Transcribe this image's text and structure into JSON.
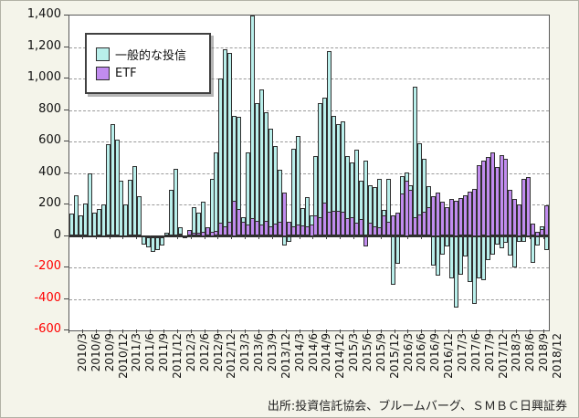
{
  "source_note": "出所:投資信託協会、ブルームバーグ、ＳＭＢＣ日興証券",
  "legend": {
    "fund_label": "一般的な投信",
    "etf_label": "ETF"
  },
  "colors": {
    "background": "#f4f4ea",
    "plot_background": "#ffffff",
    "fund_bar": "#b9efeb",
    "etf_bar": "#c18cef",
    "bar_outline": "#2f2f2f",
    "gridline": "#9a9a9a",
    "negative_tick_label": "#ff0000",
    "positive_tick_label": "#111111"
  },
  "chart_data": {
    "type": "bar",
    "title": "",
    "xlabel": "",
    "ylabel": "",
    "ylim": [
      -600,
      1400
    ],
    "ytick_step": 200,
    "grid": "horizontal-dashed",
    "legend_position": "upper-left-inside",
    "x_tick_label_every_n_months": 3,
    "series_meta": [
      {
        "key": "fund",
        "name": "一般的な投信",
        "color": "#b9efeb"
      },
      {
        "key": "etf",
        "name": "ETF",
        "color": "#c18cef"
      }
    ],
    "columns": [
      "month",
      "fund",
      "etf"
    ],
    "rows": [
      [
        "2010/3",
        140,
        0
      ],
      [
        "2010/4",
        260,
        0
      ],
      [
        "2010/5",
        130,
        0
      ],
      [
        "2010/6",
        205,
        0
      ],
      [
        "2010/7",
        400,
        0
      ],
      [
        "2010/8",
        150,
        0
      ],
      [
        "2010/9",
        170,
        0
      ],
      [
        "2010/10",
        200,
        0
      ],
      [
        "2010/11",
        580,
        5
      ],
      [
        "2010/12",
        710,
        10
      ],
      [
        "2011/1",
        610,
        10
      ],
      [
        "2011/2",
        350,
        5
      ],
      [
        "2011/3",
        200,
        5
      ],
      [
        "2011/4",
        355,
        5
      ],
      [
        "2011/5",
        445,
        5
      ],
      [
        "2011/6",
        255,
        5
      ],
      [
        "2011/7",
        -55,
        0
      ],
      [
        "2011/8",
        -75,
        -5
      ],
      [
        "2011/9",
        -100,
        -10
      ],
      [
        "2011/10",
        -90,
        -10
      ],
      [
        "2011/11",
        -60,
        -5
      ],
      [
        "2011/12",
        20,
        10
      ],
      [
        "2012/1",
        290,
        10
      ],
      [
        "2012/2",
        425,
        10
      ],
      [
        "2012/3",
        55,
        15
      ],
      [
        "2012/4",
        -10,
        5
      ],
      [
        "2012/5",
        20,
        40
      ],
      [
        "2012/6",
        180,
        20
      ],
      [
        "2012/7",
        145,
        20
      ],
      [
        "2012/8",
        215,
        25
      ],
      [
        "2012/9",
        35,
        55
      ],
      [
        "2012/10",
        365,
        25
      ],
      [
        "2012/11",
        530,
        30
      ],
      [
        "2012/12",
        1000,
        85
      ],
      [
        "2013/1",
        1185,
        60
      ],
      [
        "2013/2",
        1165,
        90
      ],
      [
        "2013/3",
        760,
        225
      ],
      [
        "2013/4",
        755,
        170
      ],
      [
        "2013/5",
        120,
        90
      ],
      [
        "2013/6",
        530,
        70
      ],
      [
        "2013/7",
        1400,
        115
      ],
      [
        "2013/8",
        845,
        95
      ],
      [
        "2013/9",
        930,
        70
      ],
      [
        "2013/10",
        785,
        95
      ],
      [
        "2013/11",
        680,
        60
      ],
      [
        "2013/12",
        570,
        80
      ],
      [
        "2014/1",
        420,
        90
      ],
      [
        "2014/2",
        -60,
        275
      ],
      [
        "2014/3",
        -40,
        90
      ],
      [
        "2014/4",
        555,
        60
      ],
      [
        "2014/5",
        635,
        70
      ],
      [
        "2014/6",
        175,
        65
      ],
      [
        "2014/7",
        245,
        60
      ],
      [
        "2014/8",
        130,
        75
      ],
      [
        "2014/9",
        505,
        130
      ],
      [
        "2014/10",
        845,
        120
      ],
      [
        "2014/11",
        880,
        210
      ],
      [
        "2014/12",
        1175,
        155
      ],
      [
        "2015/1",
        765,
        160
      ],
      [
        "2015/2",
        710,
        160
      ],
      [
        "2015/3",
        730,
        155
      ],
      [
        "2015/4",
        510,
        115
      ],
      [
        "2015/5",
        465,
        120
      ],
      [
        "2015/6",
        545,
        85
      ],
      [
        "2015/7",
        350,
        110
      ],
      [
        "2015/8",
        480,
        -65
      ],
      [
        "2015/9",
        320,
        85
      ],
      [
        "2015/10",
        310,
        60
      ],
      [
        "2015/11",
        365,
        55
      ],
      [
        "2015/12",
        165,
        130
      ],
      [
        "2016/1",
        365,
        90
      ],
      [
        "2016/2",
        -310,
        130
      ],
      [
        "2016/3",
        -175,
        145
      ],
      [
        "2016/4",
        380,
        270
      ],
      [
        "2016/5",
        405,
        350
      ],
      [
        "2016/6",
        320,
        290
      ],
      [
        "2016/7",
        945,
        120
      ],
      [
        "2016/8",
        590,
        135
      ],
      [
        "2016/9",
        490,
        155
      ],
      [
        "2016/10",
        315,
        180
      ],
      [
        "2016/11",
        -190,
        250
      ],
      [
        "2016/12",
        -250,
        275
      ],
      [
        "2017/1",
        -120,
        220
      ],
      [
        "2017/2",
        -65,
        180
      ],
      [
        "2017/3",
        -270,
        235
      ],
      [
        "2017/4",
        -455,
        225
      ],
      [
        "2017/5",
        -245,
        240
      ],
      [
        "2017/6",
        -130,
        260
      ],
      [
        "2017/7",
        -290,
        280
      ],
      [
        "2017/8",
        -430,
        300
      ],
      [
        "2017/9",
        -270,
        450
      ],
      [
        "2017/10",
        -280,
        480
      ],
      [
        "2017/11",
        -155,
        500
      ],
      [
        "2017/12",
        -120,
        530
      ],
      [
        "2018/1",
        -55,
        440
      ],
      [
        "2018/2",
        -80,
        515
      ],
      [
        "2018/3",
        -45,
        490
      ],
      [
        "2018/4",
        -125,
        295
      ],
      [
        "2018/5",
        -200,
        235
      ],
      [
        "2018/6",
        -35,
        200
      ],
      [
        "2018/7",
        -35,
        360
      ],
      [
        "2018/8",
        95,
        375
      ],
      [
        "2018/9",
        -170,
        80
      ],
      [
        "2018/10",
        -60,
        25
      ],
      [
        "2018/11",
        60,
        45
      ],
      [
        "2018/12",
        -90,
        195
      ]
    ]
  }
}
